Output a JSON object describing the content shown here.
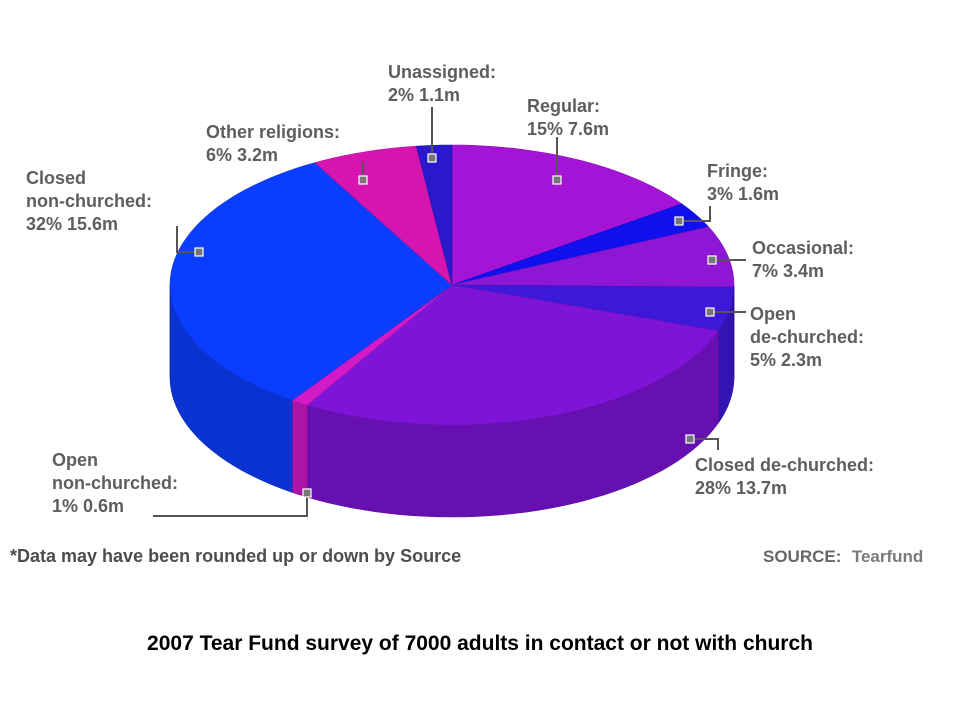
{
  "caption": "2007 Tear Fund survey of 7000 adults in contact or not with church",
  "footnote": "*Data may have been rounded up or down by Source",
  "source": {
    "label": "SOURCE:",
    "value": "Tearfund"
  },
  "chart_data": {
    "type": "pie",
    "title": "",
    "unit_note": "m",
    "slices": [
      {
        "name": "Regular",
        "label_lines": [
          "Regular:"
        ],
        "value_text": "15% 7.6m",
        "percent": 15,
        "millions": 7.6,
        "color": "#a314d6"
      },
      {
        "name": "Fringe",
        "label_lines": [
          "Fringe:"
        ],
        "value_text": "3% 1.6m",
        "percent": 3,
        "millions": 1.6,
        "color": "#1010ee"
      },
      {
        "name": "Occasional",
        "label_lines": [
          "Occasional:"
        ],
        "value_text": "7% 3.4m",
        "percent": 7,
        "millions": 3.4,
        "color": "#8e17d6"
      },
      {
        "name": "Open de-churched",
        "label_lines": [
          "Open",
          "de-churched:"
        ],
        "value_text": "5% 2.3m",
        "percent": 5,
        "millions": 2.3,
        "color": "#3d18d8"
      },
      {
        "name": "Closed de-churched",
        "label_lines": [
          "Closed de-churched:"
        ],
        "value_text": "28% 13.7m",
        "percent": 28,
        "millions": 13.7,
        "color": "#7d14d8"
      },
      {
        "name": "Open non-churched",
        "label_lines": [
          "Open",
          "non-churched:"
        ],
        "value_text": "1% 0.6m",
        "percent": 1,
        "millions": 0.6,
        "color": "#d21ac8"
      },
      {
        "name": "Closed non-churched",
        "label_lines": [
          "Closed",
          "non-churched:"
        ],
        "value_text": "32% 15.6m",
        "percent": 32,
        "millions": 15.6,
        "color": "#0b3dff"
      },
      {
        "name": "Other religions",
        "label_lines": [
          "Other religions:"
        ],
        "value_text": "6% 3.2m",
        "percent": 6,
        "millions": 3.2,
        "color": "#d615b0"
      },
      {
        "name": "Unassigned",
        "label_lines": [
          "Unassigned:"
        ],
        "value_text": "2% 1.1m",
        "percent": 2,
        "millions": 1.1,
        "color": "#2a18cc"
      }
    ]
  }
}
